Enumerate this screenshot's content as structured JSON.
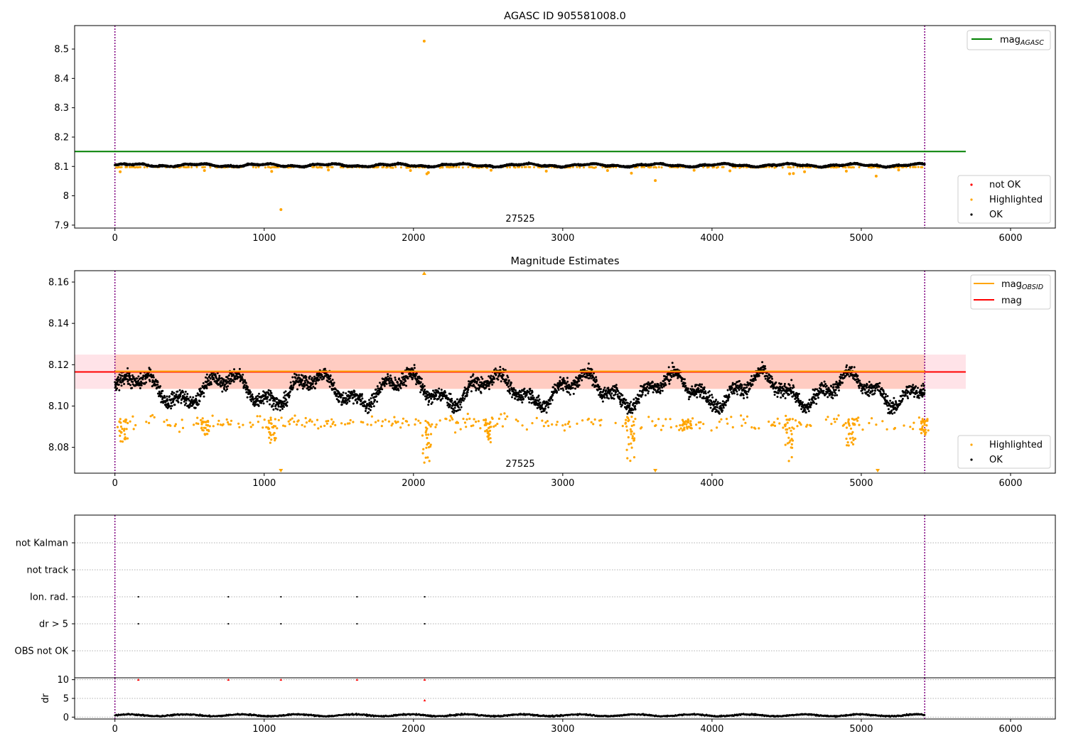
{
  "chart_data": [
    {
      "type": "scatter",
      "title": "AGASC ID 905581008.0",
      "xlabel": "",
      "ylabel": "",
      "xlim": [
        -270,
        6300
      ],
      "ylim": [
        7.89,
        8.58
      ],
      "x_ticks": [
        0,
        1000,
        2000,
        3000,
        4000,
        5000,
        6000
      ],
      "y_ticks": [
        7.9,
        8.0,
        8.1,
        8.2,
        8.3,
        8.4,
        8.5
      ],
      "obsid_boundaries": [
        0,
        5425
      ],
      "obsid_label": {
        "text": "27525",
        "x": 2712,
        "y": 7.91
      },
      "reference_lines": [
        {
          "name": "mag_AGASC",
          "label_main": "mag",
          "label_sub": "AGASC",
          "y": 8.151,
          "x_range": [
            -270,
            5700
          ],
          "color": "#008000"
        }
      ],
      "series": [
        {
          "name": "not OK",
          "color": "#ff0000",
          "points": []
        },
        {
          "name": "Highlighted",
          "color": "#ffa500",
          "points": [
            [
              2072,
              8.527
            ],
            [
              1112,
              7.953
            ],
            [
              3620,
              8.052
            ],
            [
              5100,
              8.067
            ],
            [
              2090,
              8.075
            ],
            [
              2100,
              8.079
            ],
            [
              3460,
              8.077
            ],
            [
              4520,
              8.075
            ],
            [
              4545,
              8.076
            ],
            [
              35,
              8.082
            ],
            [
              600,
              8.086
            ],
            [
              1050,
              8.083
            ],
            [
              1430,
              8.088
            ],
            [
              1980,
              8.086
            ],
            [
              2520,
              8.087
            ],
            [
              2890,
              8.084
            ],
            [
              3300,
              8.086
            ],
            [
              3880,
              8.087
            ],
            [
              4120,
              8.085
            ],
            [
              4620,
              8.082
            ],
            [
              4900,
              8.084
            ],
            [
              5250,
              8.088
            ]
          ],
          "band": {
            "center": 8.094,
            "spread": 0.006
          }
        },
        {
          "name": "OK",
          "color": "#000000",
          "trend": "noisy_band",
          "y_center": 8.104,
          "y_spread": 0.009
        }
      ],
      "legends": [
        {
          "position": "upper-right",
          "entries": [
            {
              "main": "mag",
              "sub": "AGASC",
              "color": "#008000"
            }
          ]
        },
        {
          "position": "lower-right",
          "entries": [
            {
              "label": "not OK",
              "color": "#ff0000"
            },
            {
              "label": "Highlighted",
              "color": "#ffa500"
            },
            {
              "label": "OK",
              "color": "#000000"
            }
          ]
        }
      ]
    },
    {
      "type": "scatter",
      "title": "Magnitude Estimates",
      "xlabel": "",
      "ylabel": "",
      "xlim": [
        -270,
        6300
      ],
      "ylim": [
        8.0675,
        8.1655
      ],
      "x_ticks": [
        0,
        1000,
        2000,
        3000,
        4000,
        5000,
        6000
      ],
      "y_ticks": [
        8.08,
        8.1,
        8.12,
        8.14,
        8.16
      ],
      "y_tick_labels": [
        "8.08",
        "8.10",
        "8.12",
        "8.14",
        "8.16"
      ],
      "obsid_boundaries": [
        0,
        5425
      ],
      "obsid_label": {
        "text": "27525",
        "x": 2712,
        "y": 8.0715
      },
      "band": {
        "y_low": 8.1083,
        "y_high": 8.1249,
        "x_range": [
          -270,
          5700
        ]
      },
      "reference_lines": [
        {
          "name": "mag_OBSID",
          "label_main": "mag",
          "label_sub": "OBSID",
          "y": 8.1168,
          "x_range": [
            0,
            5425
          ],
          "color": "#ffa500"
        },
        {
          "name": "mag",
          "label_main": "mag",
          "y": 8.1165,
          "x_range": [
            -270,
            5700
          ],
          "color": "#ff0000"
        }
      ],
      "series": [
        {
          "name": "Highlighted",
          "color": "#ffa500",
          "dips": [
            [
              60,
              8.082
            ],
            [
              600,
              8.086
            ],
            [
              1050,
              8.082
            ],
            [
              2090,
              8.072
            ],
            [
              2500,
              8.082
            ],
            [
              3450,
              8.072
            ],
            [
              3830,
              8.088
            ],
            [
              4520,
              8.073
            ],
            [
              4930,
              8.08
            ],
            [
              5420,
              8.086
            ]
          ],
          "clipped_low": [
            1112,
            3620,
            5110
          ],
          "clipped_high": [
            2072
          ],
          "y_center": 8.092,
          "y_spread": 0.006
        },
        {
          "name": "OK",
          "color": "#000000",
          "y_center": 8.108,
          "y_spread": 0.013
        }
      ],
      "legends": [
        {
          "position": "upper-right",
          "entries": [
            {
              "main": "mag",
              "sub": "OBSID",
              "color": "#ffa500"
            },
            {
              "label": "mag",
              "color": "#ff0000"
            }
          ]
        },
        {
          "position": "lower-right",
          "entries": [
            {
              "label": "Highlighted",
              "color": "#ffa500"
            },
            {
              "label": "OK",
              "color": "#000000"
            }
          ]
        }
      ]
    },
    {
      "type": "scatter",
      "title": "",
      "xlabel": "",
      "ylabel": "",
      "xlim": [
        -270,
        6300
      ],
      "categories": [
        "not Kalman",
        "not track",
        "Ion. rad.",
        "dr > 5",
        "OBS not OK"
      ],
      "obsid_boundaries": [
        0,
        5425
      ],
      "grid": "horizontal dotted",
      "events": {
        "Ion. rad.": [
          157,
          760,
          1112,
          1622,
          2075
        ],
        "dr > 5": [
          157,
          760,
          1112,
          1622,
          2075
        ]
      },
      "marker_color": "#000000"
    },
    {
      "type": "scatter",
      "title": "",
      "xlabel": "",
      "ylabel": "dr",
      "xlim": [
        -270,
        6300
      ],
      "ylim": [
        -0.5,
        10.5
      ],
      "x_ticks": [
        0,
        1000,
        2000,
        3000,
        4000,
        5000,
        6000
      ],
      "y_ticks": [
        0,
        5,
        10
      ],
      "obsid_boundaries": [
        0,
        5425
      ],
      "grid": "horizontal dotted",
      "series": [
        {
          "name": "dr",
          "color": "#000000",
          "y_center": 0.5,
          "y_spread": 0.3
        },
        {
          "name": "dr clipped",
          "color": "#ff0000",
          "marker": "triangle-up",
          "points": [
            [
              157,
              10
            ],
            [
              760,
              10
            ],
            [
              1112,
              10
            ],
            [
              1622,
              10
            ],
            [
              2075,
              10
            ],
            [
              2075,
              4.5
            ]
          ]
        }
      ]
    }
  ]
}
